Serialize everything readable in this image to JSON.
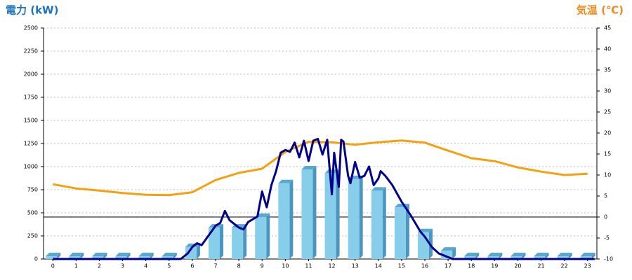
{
  "chart_data": {
    "type": "bar",
    "title_left": "電力 (kW)",
    "title_right": "気温 (℃)",
    "left_title_color": "#1e73be",
    "right_title_color": "#f08a1c",
    "xlim": [
      -0.4,
      23.4
    ],
    "xticks": [
      0,
      1,
      2,
      3,
      4,
      5,
      6,
      7,
      8,
      9,
      10,
      11,
      12,
      13,
      14,
      15,
      16,
      17,
      18,
      19,
      20,
      21,
      22,
      23
    ],
    "ylim": [
      0,
      2500
    ],
    "yticks": [
      0,
      250,
      500,
      750,
      1000,
      1250,
      1500,
      1750,
      2000,
      2250,
      2500
    ],
    "y2lim": [
      -10,
      45
    ],
    "y2ticks": [
      -10,
      -5,
      0,
      5,
      10,
      15,
      20,
      25,
      30,
      35,
      40,
      45
    ],
    "grid": true,
    "y2_zero_line": true,
    "series": [
      {
        "type": "bar",
        "color": "#87ceeb",
        "values": [
          30,
          30,
          30,
          30,
          30,
          30,
          130,
          340,
          340,
          455,
          820,
          970,
          930,
          865,
          740,
          560,
          290,
          90,
          30,
          30,
          30,
          30,
          30,
          30
        ]
      },
      {
        "type": "line",
        "color": "#00008b",
        "x": [
          0,
          5.5,
          5.8,
          6,
          6.2,
          6.4,
          6.6,
          6.8,
          7,
          7.2,
          7.4,
          7.6,
          7.8,
          8,
          8.2,
          8.4,
          8.6,
          8.8,
          9,
          9.2,
          9.4,
          9.6,
          9.8,
          10,
          10.2,
          10.4,
          10.6,
          10.8,
          11,
          11.2,
          11.4,
          11.6,
          11.8,
          12,
          12.1,
          12.3,
          12.4,
          12.5,
          12.7,
          12.8,
          13,
          13.2,
          13.4,
          13.6,
          13.8,
          14,
          14.1,
          14.3,
          14.6,
          15,
          15.4,
          15.8,
          16,
          16.3,
          16.6,
          17.2,
          23.3
        ],
        "values": [
          0,
          0,
          60,
          130,
          170,
          150,
          220,
          290,
          360,
          390,
          520,
          420,
          380,
          340,
          320,
          400,
          430,
          460,
          730,
          560,
          800,
          950,
          1150,
          1180,
          1160,
          1260,
          1100,
          1280,
          1060,
          1280,
          1300,
          1130,
          1290,
          700,
          1150,
          780,
          1290,
          1270,
          900,
          820,
          1050,
          880,
          900,
          1000,
          800,
          870,
          950,
          900,
          800,
          620,
          470,
          300,
          240,
          130,
          60,
          0,
          0
        ]
      },
      {
        "type": "line",
        "axis": "y2",
        "color": "#f5a00f",
        "x": [
          0,
          1,
          2,
          3,
          4,
          5,
          6,
          7,
          8,
          9,
          10,
          11,
          12,
          13,
          14,
          15,
          16,
          17,
          18,
          19,
          20,
          21,
          22,
          23
        ],
        "values": [
          7.8,
          6.8,
          6.3,
          5.7,
          5.3,
          5.2,
          5.9,
          8.8,
          10.5,
          11.5,
          15.5,
          17.9,
          17.8,
          17.2,
          17.8,
          18.2,
          17.7,
          15.8,
          14,
          13.3,
          11.8,
          10.8,
          10,
          10.3
        ]
      }
    ]
  }
}
